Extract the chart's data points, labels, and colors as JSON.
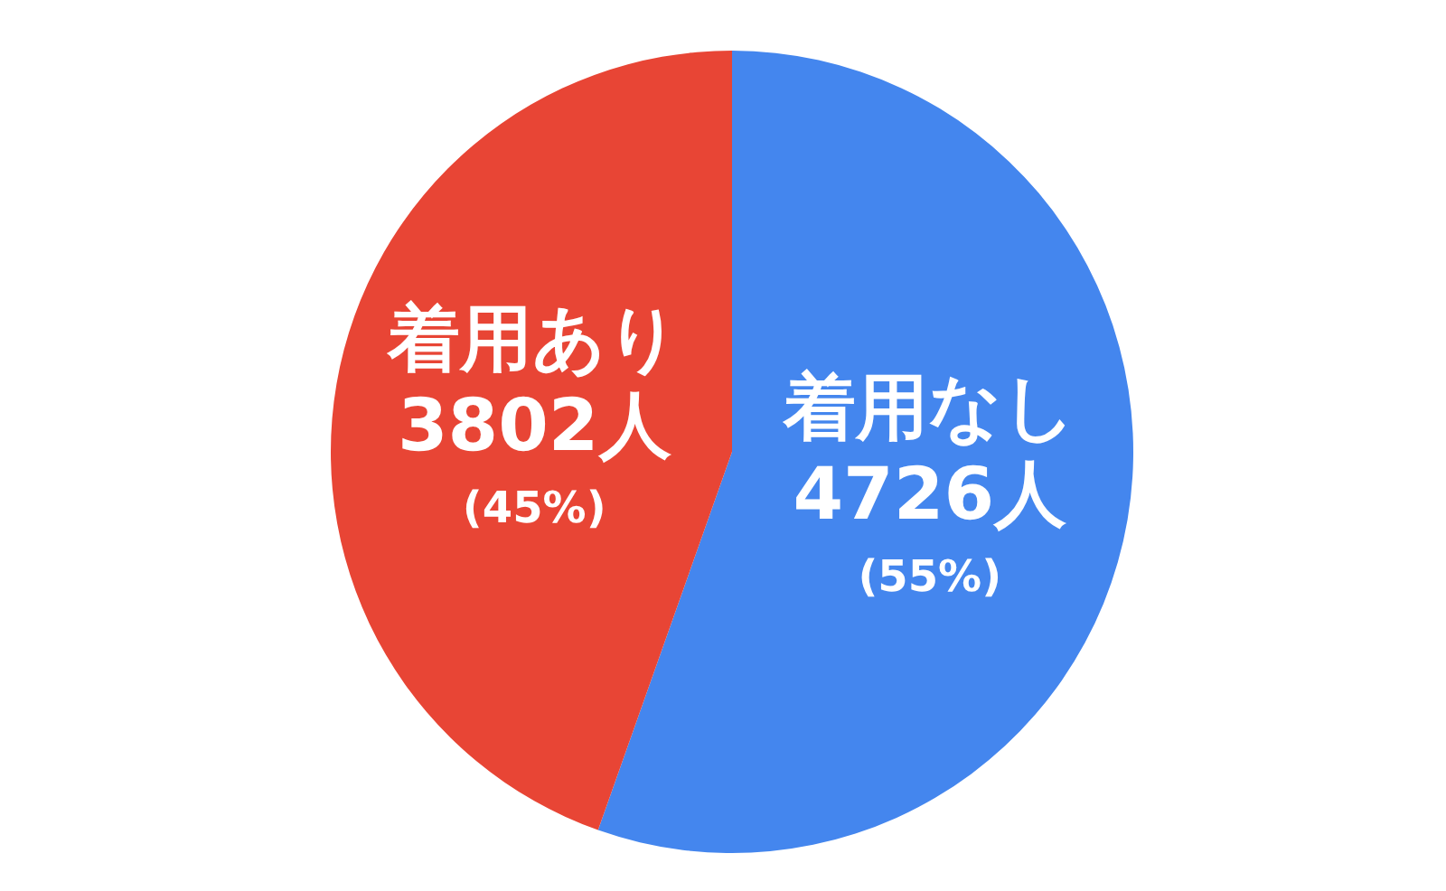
{
  "chart_data": {
    "type": "pie",
    "categories": [
      "着用なし",
      "着用あり"
    ],
    "values": [
      4726,
      3802
    ],
    "colors": [
      "#4486ee",
      "#e84535"
    ],
    "value_labels": [
      "4726人 (55%)",
      "3802人 (45%)"
    ]
  }
}
